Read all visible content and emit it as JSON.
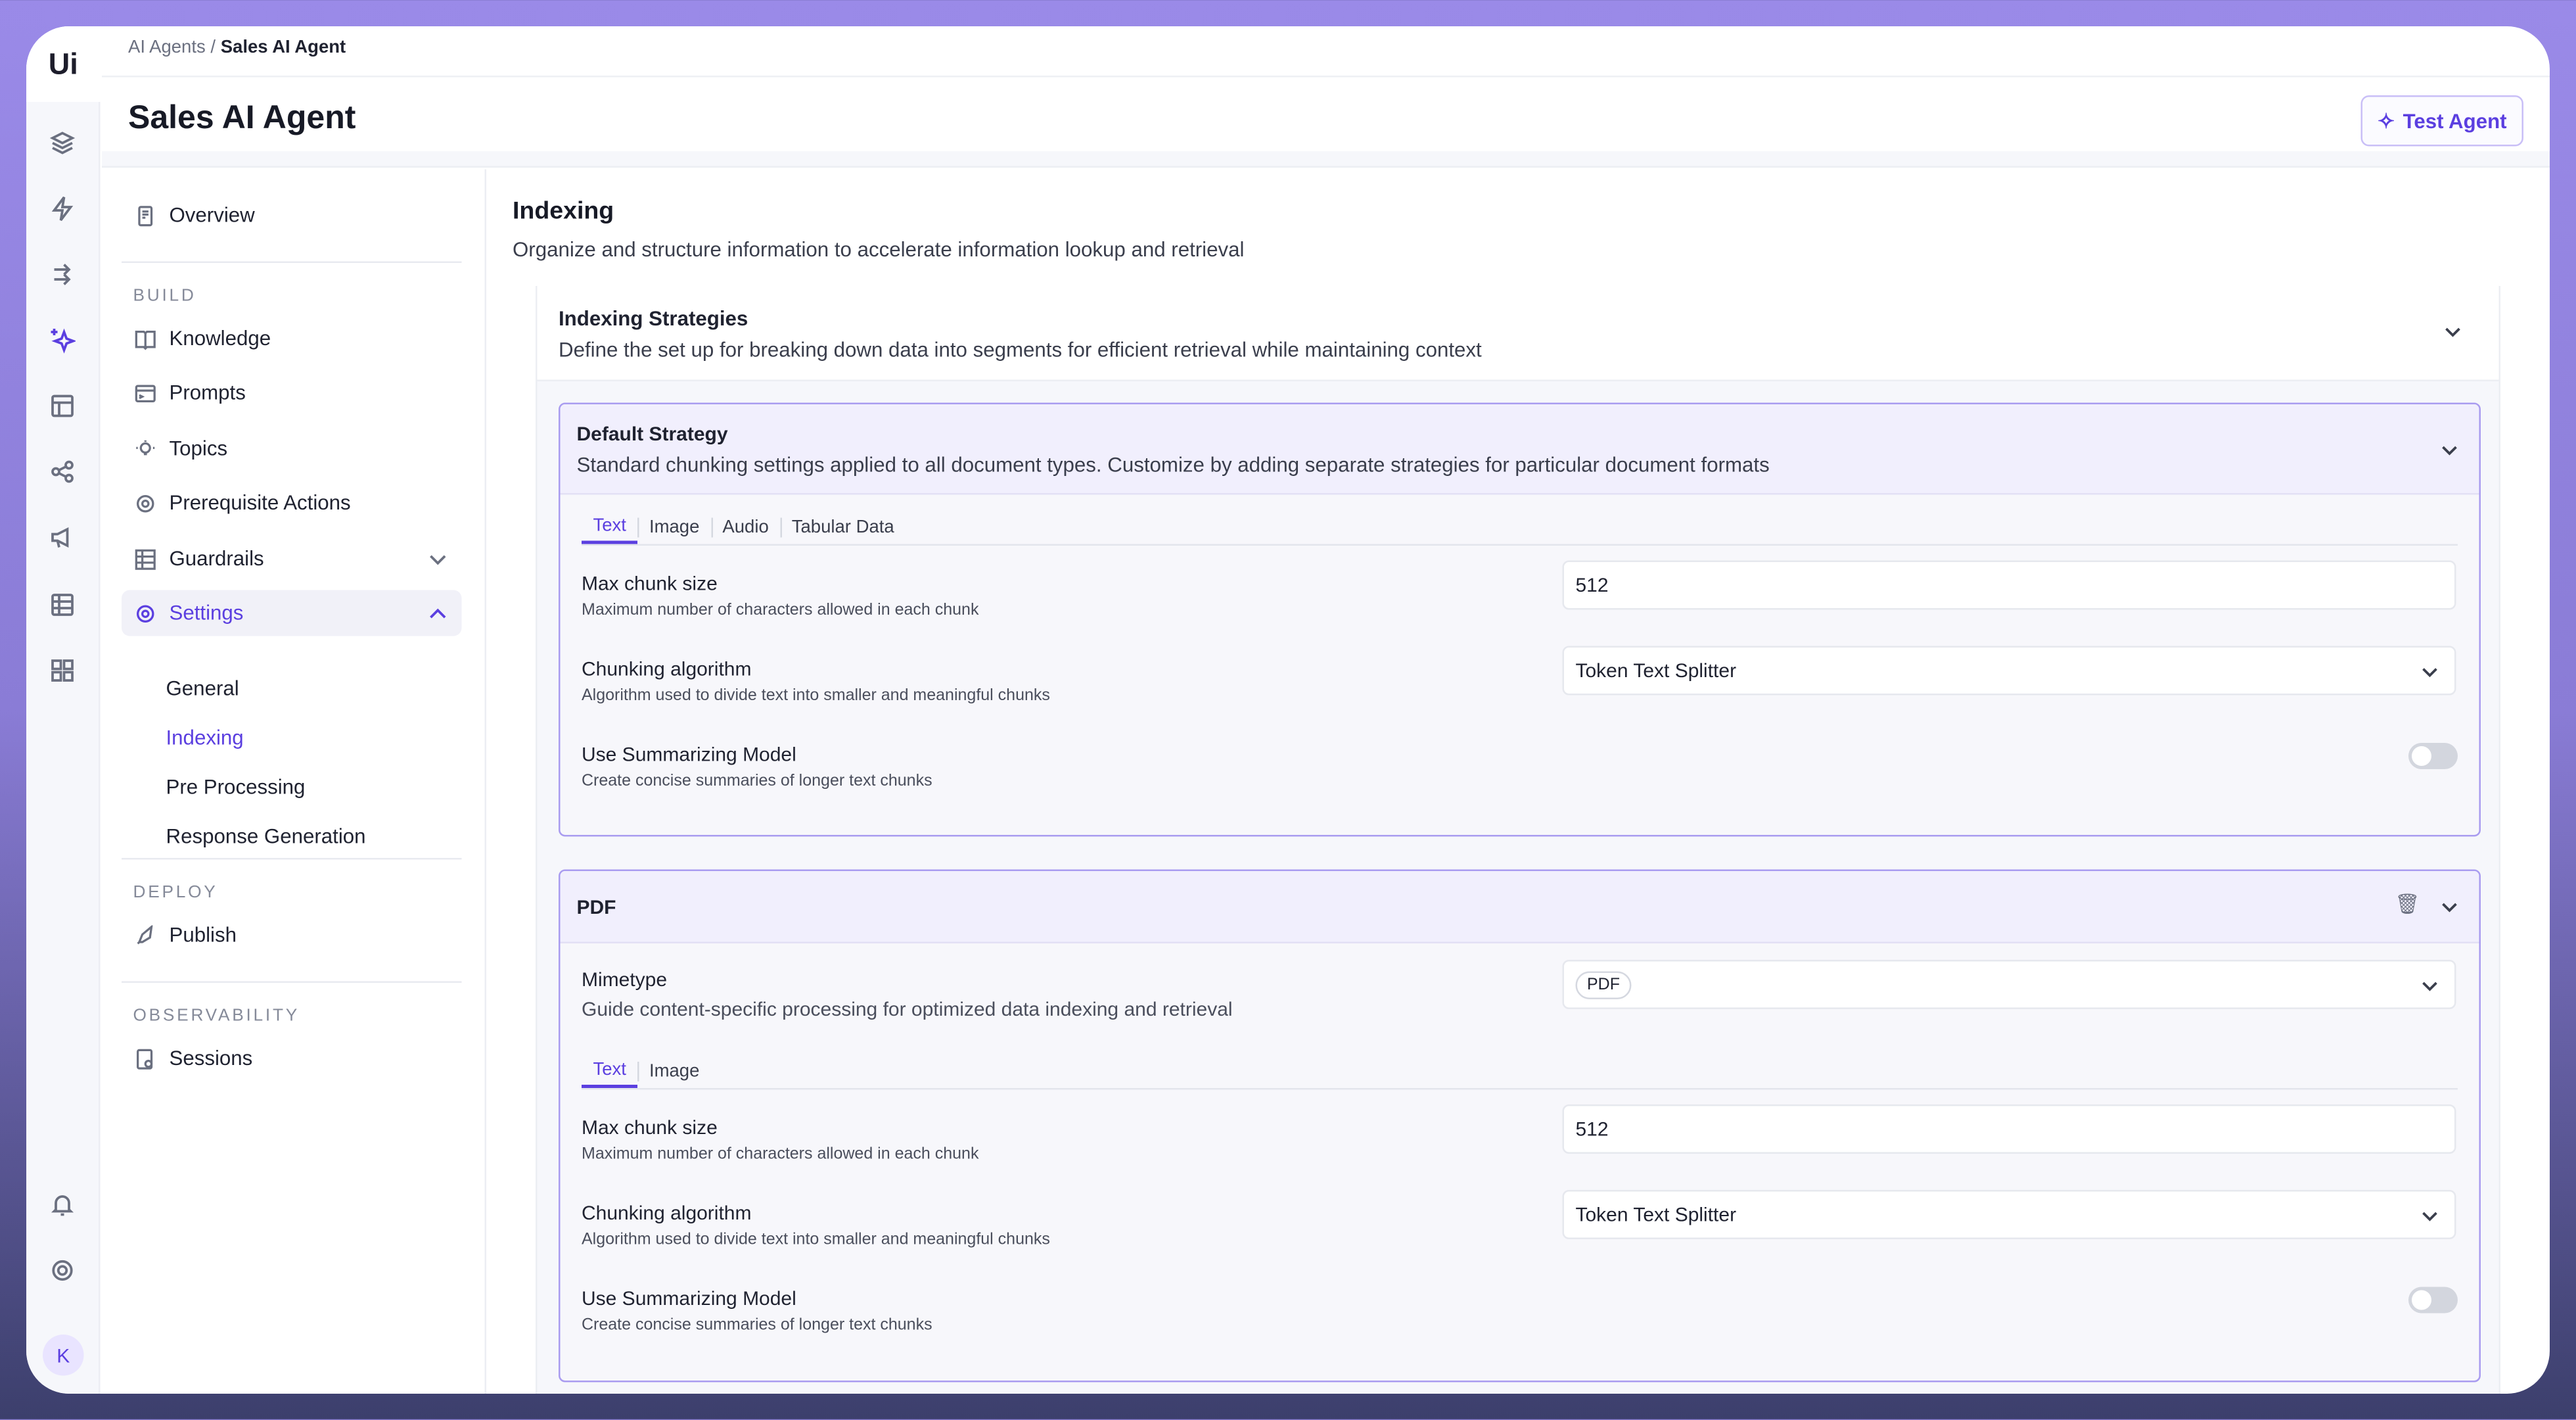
{
  "breadcrumb": {
    "parent": "AI Agents",
    "separator": "/",
    "current": "Sales AI Agent"
  },
  "page_title": "Sales AI Agent",
  "test_agent_label": "Test Agent",
  "user_initial": "K",
  "accent_color": "#5b3fe0",
  "nav": {
    "overview": "Overview",
    "build_label": "BUILD",
    "knowledge": "Knowledge",
    "prompts": "Prompts",
    "topics": "Topics",
    "prereq": "Prerequisite Actions",
    "guardrails": "Guardrails",
    "settings": "Settings",
    "settings_sub": [
      "General",
      "Indexing",
      "Pre Processing",
      "Response Generation"
    ],
    "deploy_label": "DEPLOY",
    "publish": "Publish",
    "observability_label": "OBSERVABILITY",
    "sessions": "Sessions"
  },
  "main": {
    "title": "Indexing",
    "description": "Organize and structure information to accelerate information lookup and retrieval",
    "strategies": {
      "title": "Indexing Strategies",
      "description": "Define the set up for breaking down data into segments for efficient retrieval while maintaining context"
    },
    "default": {
      "title": "Default Strategy",
      "description": "Standard chunking settings applied to all document types. Customize by adding separate strategies for particular document formats",
      "tabs": [
        "Text",
        "Image",
        "Audio",
        "Tabular Data"
      ],
      "max_chunk": {
        "label": "Max chunk size",
        "help": "Maximum number of characters allowed in each chunk",
        "value": "512"
      },
      "algorithm": {
        "label": "Chunking algorithm",
        "help": "Algorithm used to divide text into smaller and meaningful chunks",
        "value": "Token Text Splitter"
      },
      "summarize": {
        "label": "Use Summarizing Model",
        "help": "Create concise summaries of longer text chunks",
        "enabled": false
      }
    },
    "pdf": {
      "title": "PDF",
      "mimetype": {
        "label": "Mimetype",
        "help": "Guide content-specific processing for optimized data indexing and retrieval",
        "value": "PDF"
      },
      "tabs": [
        "Text",
        "Image"
      ],
      "max_chunk": {
        "label": "Max chunk size",
        "help": "Maximum number of characters allowed in each chunk",
        "value": "512"
      },
      "algorithm": {
        "label": "Chunking algorithm",
        "help": "Algorithm used to divide text into smaller and meaningful chunks",
        "value": "Token Text Splitter"
      },
      "summarize": {
        "label": "Use Summarizing Model",
        "help": "Create concise summaries of longer text chunks",
        "enabled": false
      }
    }
  }
}
